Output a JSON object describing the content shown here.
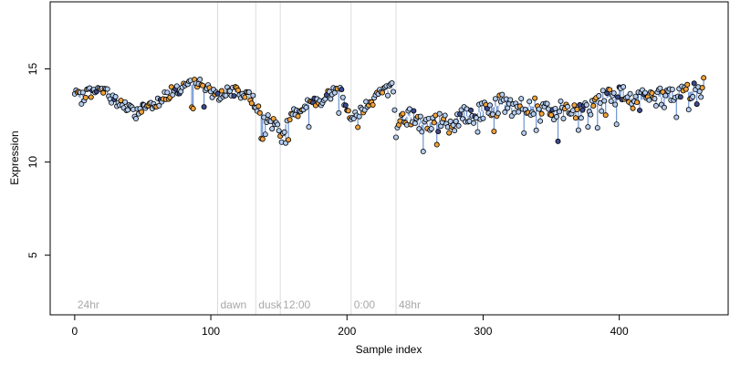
{
  "chart_data": {
    "type": "scatter",
    "title": "",
    "xlabel": "Sample index",
    "ylabel": "Expression",
    "xlim": [
      -18,
      480
    ],
    "ylim": [
      1.8,
      18.6
    ],
    "x_ticks": [
      0,
      100,
      200,
      300,
      400
    ],
    "y_ticks": [
      5,
      10,
      15
    ],
    "grid": false,
    "legend": "none",
    "colors": {
      "point_light": "#b4cdf0",
      "point_orange": "#f2a23a",
      "point_dark": "#3c4a8c",
      "stem": "#6f95d2",
      "marker": "#dcdcdc",
      "phase_text": "#a8a8a8"
    },
    "phase_markers": [
      {
        "label": "24hr",
        "x": 0
      },
      {
        "label": "dawn",
        "x": 105
      },
      {
        "label": "dusk",
        "x": 133
      },
      {
        "label": "12:00",
        "x": 151
      },
      {
        "label": "0:00",
        "x": 203
      },
      {
        "label": "48hr",
        "x": 236
      }
    ],
    "anchors": [
      [
        0,
        13.6
      ],
      [
        5,
        13.4
      ],
      [
        10,
        13.8
      ],
      [
        15,
        13.7
      ],
      [
        20,
        13.9
      ],
      [
        25,
        13.6
      ],
      [
        30,
        13.3
      ],
      [
        35,
        13.1
      ],
      [
        40,
        12.8
      ],
      [
        45,
        12.6
      ],
      [
        50,
        12.9
      ],
      [
        55,
        13.1
      ],
      [
        60,
        13.2
      ],
      [
        65,
        13.5
      ],
      [
        70,
        13.7
      ],
      [
        75,
        13.9
      ],
      [
        80,
        14.0
      ],
      [
        85,
        14.1
      ],
      [
        90,
        14.3
      ],
      [
        95,
        14.0
      ],
      [
        100,
        13.8
      ],
      [
        105,
        13.6
      ],
      [
        110,
        13.7
      ],
      [
        115,
        13.8
      ],
      [
        120,
        13.7
      ],
      [
        125,
        13.6
      ],
      [
        130,
        13.4
      ],
      [
        135,
        12.9
      ],
      [
        140,
        12.4
      ],
      [
        145,
        12.0
      ],
      [
        148,
        12.2
      ],
      [
        152,
        11.2
      ],
      [
        156,
        12.3
      ],
      [
        160,
        12.5
      ],
      [
        165,
        12.8
      ],
      [
        170,
        13.0
      ],
      [
        175,
        13.2
      ],
      [
        180,
        13.3
      ],
      [
        185,
        13.5
      ],
      [
        190,
        13.8
      ],
      [
        195,
        13.9
      ],
      [
        200,
        13.0
      ],
      [
        203,
        12.4
      ],
      [
        208,
        12.6
      ],
      [
        213,
        13.0
      ],
      [
        218,
        13.3
      ],
      [
        223,
        13.6
      ],
      [
        228,
        13.8
      ],
      [
        234,
        14.0
      ],
      [
        236,
        11.5
      ],
      [
        240,
        12.2
      ],
      [
        245,
        12.5
      ],
      [
        255,
        12.0
      ],
      [
        265,
        12.2
      ],
      [
        275,
        11.9
      ],
      [
        285,
        12.4
      ],
      [
        295,
        12.6
      ],
      [
        305,
        12.9
      ],
      [
        315,
        13.1
      ],
      [
        325,
        12.8
      ],
      [
        335,
        13.0
      ],
      [
        345,
        12.9
      ],
      [
        355,
        12.7
      ],
      [
        365,
        12.8
      ],
      [
        375,
        12.8
      ],
      [
        385,
        13.2
      ],
      [
        395,
        13.6
      ],
      [
        405,
        13.5
      ],
      [
        415,
        13.3
      ],
      [
        425,
        13.6
      ],
      [
        435,
        13.4
      ],
      [
        445,
        13.7
      ],
      [
        455,
        13.8
      ],
      [
        462,
        14.0
      ]
    ]
  }
}
